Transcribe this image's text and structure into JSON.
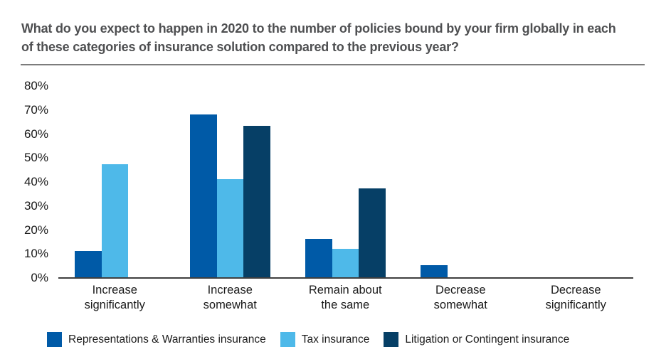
{
  "title": {
    "line1": "What do you expect to happen in 2020 to the number of policies bound by your firm globally in each",
    "line2": "of these categories of insurance solution compared to the previous year?"
  },
  "colors": {
    "rw_blue": "#005aa7",
    "tax_light_blue": "#4eb9e9",
    "litigation_navy": "#063f66",
    "axis_line": "#3f3f3f",
    "divider_gray": "#7c7c7c",
    "title_text": "#4e4f51",
    "label_text": "#1a1a1a"
  },
  "chart_data": {
    "type": "bar",
    "categories": [
      "Increase\nsignificantly",
      "Increase\nsomewhat",
      "Remain about\nthe same",
      "Decrease\nsomewhat",
      "Decrease\nsignificantly"
    ],
    "series": [
      {
        "name": "Representations & Warranties insurance",
        "color": "#005aa7",
        "values": [
          11,
          68,
          16,
          5,
          0
        ]
      },
      {
        "name": "Tax insurance",
        "color": "#4eb9e9",
        "values": [
          47,
          41,
          12,
          0,
          0
        ]
      },
      {
        "name": "Litigation or Contingent insurance",
        "color": "#063f66",
        "values": [
          0,
          63,
          37,
          0,
          0
        ]
      }
    ],
    "y_tick_labels": [
      "0%",
      "10%",
      "20%",
      "30%",
      "40%",
      "50%",
      "60%",
      "70%",
      "80%"
    ],
    "ylim": [
      0,
      80
    ],
    "ylabel": "",
    "xlabel": "",
    "grid": false,
    "legend_position": "bottom"
  }
}
